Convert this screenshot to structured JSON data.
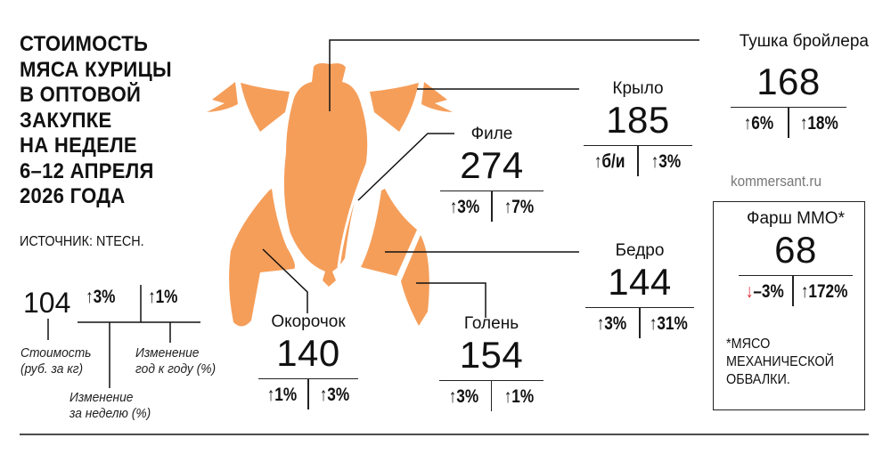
{
  "title_lines": [
    "СТОИМОСТЬ",
    "МЯСА КУРИЦЫ",
    "В ОПТОВОЙ",
    "ЗАКУПКЕ",
    "НА НЕДЕЛЕ",
    "6–12 АПРЕЛЯ",
    "2026 ГОДА"
  ],
  "source": "ИСТОЧНИК: NTECH.",
  "site": "kommersant.ru",
  "colors": {
    "chicken": "#f59e5a",
    "down": "#e0262b",
    "text": "#111111"
  },
  "legend": {
    "value": "104",
    "week_change": "↑3%",
    "year_change": "↑1%",
    "value_caption": [
      "Стоимость",
      "(руб. за кг)"
    ],
    "week_caption": [
      "Изменение",
      "за неделю (%)"
    ],
    "year_caption": [
      "Изменение",
      "год к году (%)"
    ]
  },
  "cuts": {
    "carcass": {
      "label": "Тушка бройлера",
      "price": "168",
      "week": "↑6%",
      "year": "↑18%"
    },
    "wing": {
      "label": "Крыло",
      "price": "185",
      "week": "↑б/и",
      "year": "↑3%"
    },
    "fillet": {
      "label": "Филе",
      "price": "274",
      "week": "↑3%",
      "year": "↑7%"
    },
    "thigh": {
      "label": "Бедро",
      "price": "144",
      "week": "↑3%",
      "year": "↑31%"
    },
    "leg_quarter": {
      "label": "Окорочок",
      "price": "140",
      "week": "↑1%",
      "year": "↑3%"
    },
    "drumstick": {
      "label": "Голень",
      "price": "154",
      "week": "↑3%",
      "year": "↑1%"
    },
    "mince": {
      "label": "Фарш ММО*",
      "price": "68",
      "week_arrow": "↓",
      "week": "–3%",
      "year": "↑172%",
      "note": [
        "*МЯСО",
        "МЕХАНИЧЕСКОЙ",
        "ОБВАЛКИ."
      ]
    }
  }
}
